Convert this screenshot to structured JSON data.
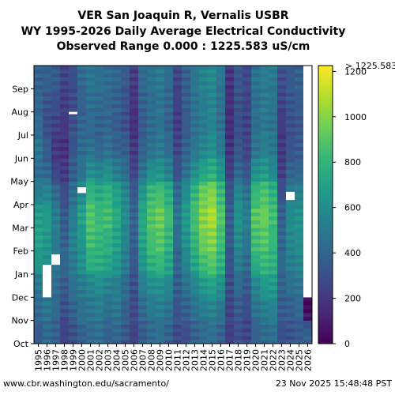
{
  "title_lines": [
    "VER San Joaquin R, Vernalis USBR",
    "WY 1995-2026 Daily Average Electrical Conductivity",
    "Observed Range 0.000 : 1225.583 uS/cm"
  ],
  "footer": {
    "source": "www.cbr.washington.edu/sacramento/",
    "timestamp": "23 Nov 2025 15:48:48 PST"
  },
  "chart_data": {
    "type": "heatmap",
    "x_categories": [
      "1995",
      "1996",
      "1997",
      "1998",
      "1999",
      "2000",
      "2001",
      "2002",
      "2003",
      "2004",
      "2005",
      "2006",
      "2007",
      "2008",
      "2009",
      "2010",
      "2011",
      "2012",
      "2013",
      "2014",
      "2015",
      "2016",
      "2017",
      "2018",
      "2019",
      "2020",
      "2021",
      "2022",
      "2023",
      "2024",
      "2025",
      "2026"
    ],
    "y_categories": [
      "Oct",
      "Nov",
      "Dec",
      "Jan",
      "Feb",
      "Mar",
      "Apr",
      "May",
      "Jun",
      "Jul",
      "Aug",
      "Sep"
    ],
    "colorbar": {
      "min": 0,
      "max": 1225.583,
      "ticks": [
        0,
        200,
        400,
        600,
        800,
        1000,
        1200
      ],
      "overflow_label": "> 1225.583",
      "colormap": "viridis",
      "colors": [
        "#440154",
        "#482878",
        "#3e4989",
        "#31688e",
        "#26828e",
        "#1f9e89",
        "#35b779",
        "#6ece58",
        "#b5de2b",
        "#fde725"
      ]
    },
    "missing_color": "#ffffff",
    "z_monthly": [
      [
        350,
        420,
        480,
        650,
        700,
        680,
        520,
        420,
        480,
        430,
        400,
        380
      ],
      [
        420,
        480,
        520,
        600,
        640,
        660,
        560,
        400,
        350,
        300,
        320,
        380
      ],
      [
        380,
        420,
        440,
        470,
        500,
        520,
        420,
        250,
        200,
        250,
        300,
        350
      ],
      [
        250,
        300,
        350,
        400,
        380,
        350,
        300,
        200,
        180,
        200,
        220,
        250
      ],
      [
        300,
        380,
        450,
        500,
        550,
        520,
        450,
        350,
        320,
        300,
        280,
        300
      ],
      [
        380,
        450,
        500,
        620,
        650,
        700,
        580,
        450,
        420,
        400,
        380,
        420
      ],
      [
        420,
        480,
        550,
        780,
        850,
        900,
        800,
        600,
        450,
        420,
        450,
        480
      ],
      [
        450,
        520,
        600,
        760,
        800,
        820,
        750,
        550,
        400,
        380,
        420,
        450
      ],
      [
        380,
        450,
        550,
        720,
        780,
        850,
        800,
        600,
        450,
        400,
        400,
        430
      ],
      [
        400,
        480,
        520,
        650,
        700,
        750,
        700,
        500,
        380,
        360,
        380,
        400
      ],
      [
        330,
        380,
        420,
        520,
        560,
        600,
        560,
        420,
        350,
        300,
        320,
        350
      ],
      [
        250,
        280,
        300,
        350,
        380,
        400,
        350,
        250,
        200,
        180,
        200,
        220
      ],
      [
        350,
        420,
        520,
        650,
        700,
        720,
        650,
        450,
        380,
        350,
        380,
        420
      ],
      [
        420,
        500,
        600,
        780,
        850,
        880,
        820,
        600,
        450,
        420,
        430,
        460
      ],
      [
        450,
        520,
        620,
        820,
        900,
        950,
        860,
        620,
        500,
        460,
        470,
        500
      ],
      [
        380,
        460,
        560,
        720,
        800,
        850,
        760,
        520,
        420,
        380,
        400,
        430
      ],
      [
        280,
        320,
        350,
        400,
        450,
        480,
        420,
        300,
        250,
        220,
        240,
        260
      ],
      [
        300,
        380,
        460,
        560,
        620,
        660,
        600,
        450,
        380,
        350,
        360,
        380
      ],
      [
        380,
        460,
        560,
        720,
        800,
        850,
        800,
        600,
        480,
        450,
        460,
        480
      ],
      [
        420,
        520,
        650,
        850,
        950,
        1000,
        950,
        700,
        550,
        500,
        520,
        540
      ],
      [
        450,
        550,
        700,
        900,
        1000,
        1080,
        1000,
        750,
        600,
        550,
        560,
        580
      ],
      [
        380,
        480,
        600,
        780,
        850,
        900,
        820,
        620,
        480,
        450,
        460,
        480
      ],
      [
        220,
        250,
        280,
        320,
        350,
        360,
        320,
        220,
        180,
        160,
        170,
        190
      ],
      [
        300,
        350,
        420,
        520,
        580,
        620,
        560,
        400,
        330,
        300,
        310,
        330
      ],
      [
        250,
        300,
        350,
        420,
        480,
        520,
        460,
        320,
        260,
        240,
        250,
        270
      ],
      [
        380,
        460,
        560,
        760,
        850,
        900,
        820,
        600,
        470,
        430,
        440,
        460
      ],
      [
        420,
        520,
        650,
        820,
        900,
        950,
        880,
        650,
        520,
        480,
        500,
        520
      ],
      [
        450,
        540,
        650,
        780,
        820,
        850,
        780,
        560,
        480,
        460,
        480,
        500
      ],
      [
        300,
        350,
        380,
        420,
        400,
        380,
        300,
        220,
        200,
        220,
        260,
        300
      ],
      [
        320,
        380,
        450,
        520,
        560,
        580,
        500,
        380,
        320,
        300,
        320,
        340
      ],
      [
        350,
        420,
        480,
        560,
        600,
        620,
        540,
        400,
        350,
        330,
        350,
        370
      ],
      [
        380,
        0,
        0,
        0,
        0,
        0,
        0,
        0,
        0,
        0,
        0,
        0
      ]
    ],
    "missing_cells": [
      {
        "year": "1996",
        "month": "Jan",
        "fraction_start": 0.0,
        "fraction_end": 0.4
      },
      {
        "year": "1996",
        "month": "Dec",
        "fraction_start": 0.0,
        "fraction_end": 1.0
      },
      {
        "year": "1997",
        "month": "Jan",
        "fraction_start": 0.4,
        "fraction_end": 0.85
      },
      {
        "year": "1999",
        "month": "Jul",
        "fraction_start": 0.9,
        "fraction_end": 1.0
      },
      {
        "year": "2000",
        "month": "Apr",
        "fraction_start": 0.5,
        "fraction_end": 0.75
      },
      {
        "year": "2024",
        "month": "Apr",
        "fraction_start": 0.2,
        "fraction_end": 0.55
      }
    ],
    "last_year_data_through": "Nov"
  }
}
